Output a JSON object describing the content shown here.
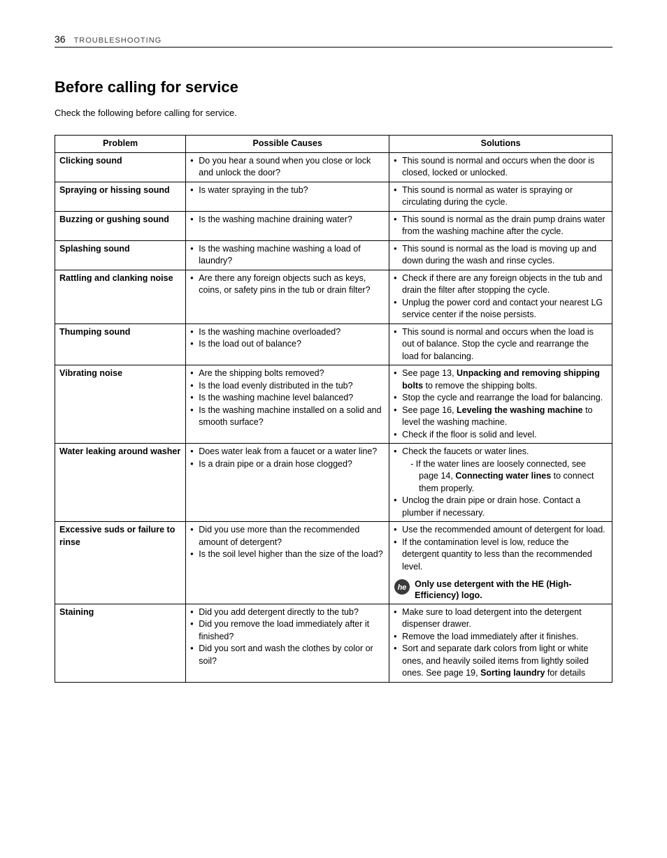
{
  "header": {
    "page_number": "36",
    "section": "TROUBLESHOOTING"
  },
  "title": "Before calling for service",
  "intro": "Check the following before calling for service.",
  "table": {
    "headers": {
      "problem": "Problem",
      "causes": "Possible Causes",
      "solutions": "Solutions"
    },
    "rows": [
      {
        "problem": "Clicking sound",
        "causes": [
          "Do you hear a sound when you close or lock and unlock the door?"
        ],
        "solutions": [
          {
            "text": "This sound is normal and occurs when the door is closed, locked or unlocked."
          }
        ]
      },
      {
        "problem": "Spraying or hissing sound",
        "causes": [
          "Is water spraying in the tub?"
        ],
        "solutions": [
          {
            "text": "This sound is normal as water is spraying or circulating during the cycle."
          }
        ]
      },
      {
        "problem": "Buzzing or gushing sound",
        "causes": [
          "Is the washing machine draining water?"
        ],
        "solutions": [
          {
            "text": "This sound is normal as the drain pump drains water from the washing machine after the cycle."
          }
        ]
      },
      {
        "problem": "Splashing sound",
        "causes": [
          "Is the washing machine washing a load of laundry?"
        ],
        "solutions": [
          {
            "text": "This sound is normal as the load is moving up and down during the wash and rinse cycles."
          }
        ]
      },
      {
        "problem": "Rattling and clanking noise",
        "causes": [
          "Are there any foreign objects such as keys, coins, or safety pins in the tub or drain filter?"
        ],
        "solutions": [
          {
            "text": "Check if there are any foreign objects in the tub and drain the filter after stopping the cycle."
          },
          {
            "text": "Unplug the power cord and contact your nearest LG service center if the noise persists."
          }
        ]
      },
      {
        "problem": "Thumping sound",
        "causes": [
          "Is the washing machine overloaded?",
          "Is the load out of balance?"
        ],
        "solutions": [
          {
            "text": "This sound is normal and occurs when the load is out of balance. Stop the cycle and rearrange the load for balancing."
          }
        ]
      },
      {
        "problem": "Vibrating noise",
        "causes": [
          "Are the shipping bolts removed?",
          "Is the load evenly distributed in the tub?",
          "Is the washing machine level balanced?",
          "Is the washing machine installed on a solid and smooth surface?"
        ],
        "solutions": [
          {
            "html": "See page 13, <b>Unpacking and removing shipping bolts</b> to remove the shipping bolts."
          },
          {
            "text": "Stop the cycle and rearrange the load for balancing."
          },
          {
            "html": "See page 16, <b>Leveling the washing machine</b> to level the washing machine."
          },
          {
            "text": "Check if the floor is solid and level."
          }
        ]
      },
      {
        "problem": "Water leaking around washer",
        "causes": [
          "Does water leak from a faucet or a water line?",
          "Is a drain pipe or a drain hose clogged?"
        ],
        "solutions": [
          {
            "html": "Check the faucets or water lines.<br><span class=\"sub-indent\">- If the water lines are loosely connected, see</span><span class=\"sub-sub-indent\">page 14, <b>Connecting water lines</b> to connect them properly.</span>"
          },
          {
            "text": "Unclog the drain pipe or drain hose. Contact a plumber if necessary."
          }
        ]
      },
      {
        "problem": "Excessive suds or failure to rinse",
        "causes": [
          "Did you use more than the recommended amount of detergent?",
          "Is the soil level higher than the size of the load?"
        ],
        "solutions": [
          {
            "text": "Use the recommended amount of detergent for load."
          },
          {
            "text": "If the contamination level is low, reduce the detergent quantity to less than the recommended level."
          }
        ],
        "he_note": "Only use detergent with the HE (High-Efficiency) logo."
      },
      {
        "problem": "Staining",
        "causes": [
          "Did you add detergent directly to the tub?",
          "Did you remove the load immediately after it finished?",
          "Did you sort and wash the clothes by color or soil?"
        ],
        "solutions": [
          {
            "text": "Make sure to load detergent into the detergent dispenser drawer."
          },
          {
            "text": "Remove the load immediately after it finishes."
          },
          {
            "html": "Sort and separate dark colors from light or white ones, and heavily soiled items from lightly soiled ones. See page 19, <b>Sorting laundry</b> for details"
          }
        ]
      }
    ]
  },
  "colors": {
    "text": "#000000",
    "background": "#ffffff",
    "border": "#000000",
    "he_icon_fill": "#3a3a3a"
  }
}
